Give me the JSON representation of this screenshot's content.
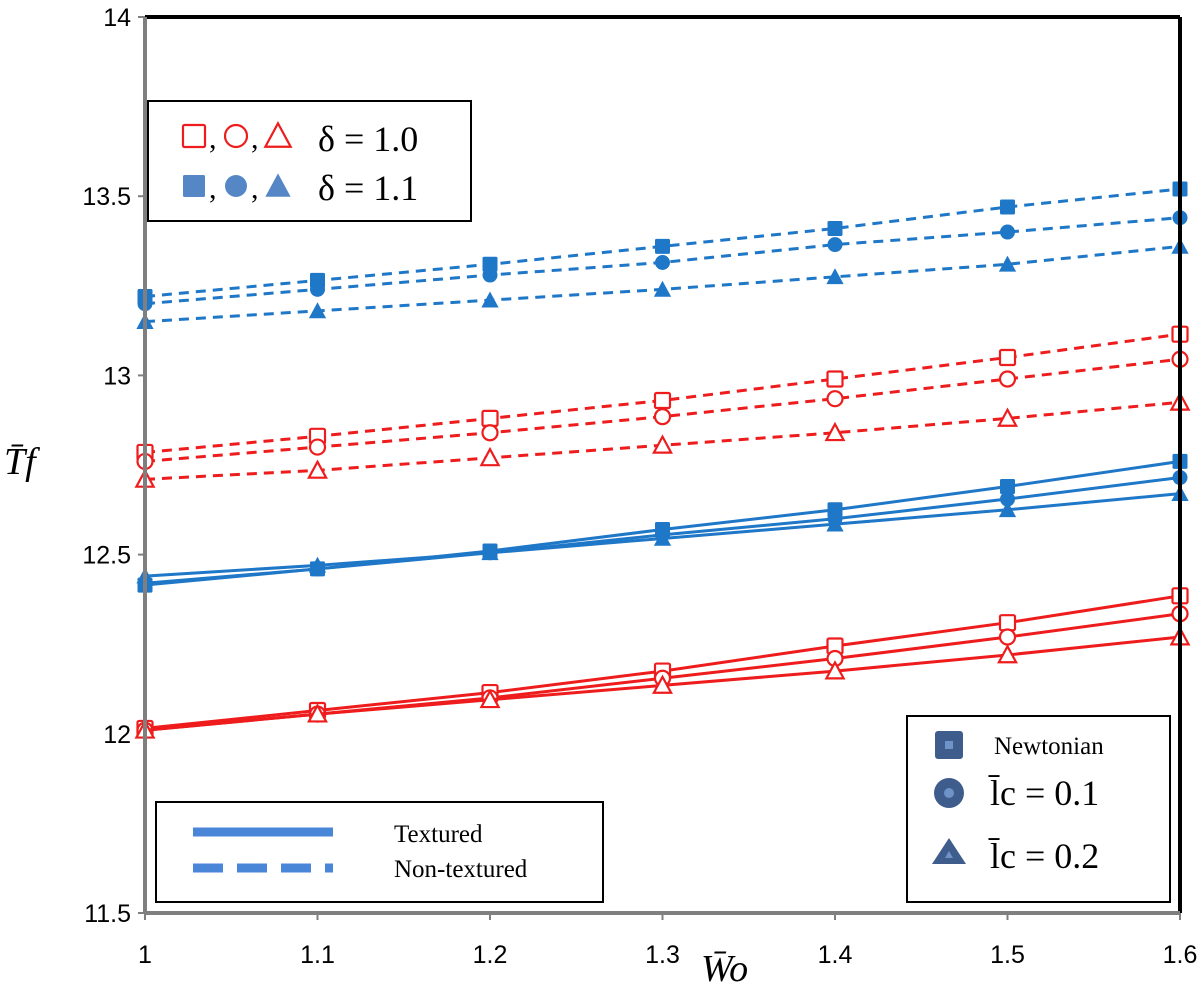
{
  "chart_data": {
    "type": "line",
    "title": "",
    "xlabel": "W̄o",
    "ylabel": "T̄f",
    "xlim": [
      1,
      1.6
    ],
    "ylim": [
      11.5,
      14
    ],
    "x": [
      1,
      1.1,
      1.2,
      1.3,
      1.4,
      1.5,
      1.6
    ],
    "x_tick_labels": [
      "1",
      "1.1",
      "1.2",
      "1.3",
      "1.4",
      "1.5",
      "1.6"
    ],
    "y_tick_labels": [
      "11.5",
      "12",
      "12.5",
      "13",
      "13.5",
      "14"
    ],
    "y_ticks": [
      11.5,
      12,
      12.5,
      13,
      13.5,
      14
    ],
    "grid": false,
    "series": [
      {
        "model": "newtonian",
        "delta": 1.1,
        "textured": false,
        "color": "#1f77c8",
        "values": [
          13.22,
          13.265,
          13.31,
          13.36,
          13.41,
          13.47,
          13.52
        ]
      },
      {
        "model": "lc0.1",
        "delta": 1.1,
        "textured": false,
        "color": "#1f77c8",
        "values": [
          13.2,
          13.24,
          13.28,
          13.315,
          13.365,
          13.4,
          13.44
        ]
      },
      {
        "model": "lc0.2",
        "delta": 1.1,
        "textured": false,
        "color": "#1f77c8",
        "values": [
          13.15,
          13.18,
          13.21,
          13.24,
          13.275,
          13.31,
          13.36
        ]
      },
      {
        "model": "newtonian",
        "delta": 1.0,
        "textured": false,
        "color": "#ee1c1c",
        "values": [
          12.785,
          12.83,
          12.88,
          12.93,
          12.99,
          13.05,
          13.115
        ]
      },
      {
        "model": "lc0.1",
        "delta": 1.0,
        "textured": false,
        "color": "#ee1c1c",
        "values": [
          12.76,
          12.8,
          12.84,
          12.885,
          12.935,
          12.99,
          13.045
        ]
      },
      {
        "model": "lc0.2",
        "delta": 1.0,
        "textured": false,
        "color": "#ee1c1c",
        "values": [
          12.71,
          12.735,
          12.77,
          12.805,
          12.84,
          12.88,
          12.925
        ]
      },
      {
        "model": "newtonian",
        "delta": 1.1,
        "textured": true,
        "color": "#1f77c8",
        "values": [
          12.415,
          12.46,
          12.51,
          12.57,
          12.625,
          12.69,
          12.76
        ]
      },
      {
        "model": "lc0.1",
        "delta": 1.1,
        "textured": true,
        "color": "#1f77c8",
        "values": [
          12.42,
          12.46,
          12.505,
          12.555,
          12.6,
          12.655,
          12.715
        ]
      },
      {
        "model": "lc0.2",
        "delta": 1.1,
        "textured": true,
        "color": "#1f77c8",
        "values": [
          12.44,
          12.47,
          12.505,
          12.545,
          12.585,
          12.625,
          12.67
        ]
      },
      {
        "model": "newtonian",
        "delta": 1.0,
        "textured": true,
        "color": "#ee1c1c",
        "values": [
          12.015,
          12.065,
          12.115,
          12.175,
          12.245,
          12.31,
          12.385
        ]
      },
      {
        "model": "lc0.1",
        "delta": 1.0,
        "textured": true,
        "color": "#ee1c1c",
        "values": [
          12.01,
          12.055,
          12.1,
          12.155,
          12.21,
          12.27,
          12.335
        ]
      },
      {
        "model": "lc0.2",
        "delta": 1.0,
        "textured": true,
        "color": "#ee1c1c",
        "values": [
          12.01,
          12.055,
          12.095,
          12.135,
          12.175,
          12.22,
          12.27
        ]
      }
    ],
    "legends": {
      "delta": {
        "position": "top-left",
        "entries": [
          {
            "markers": "open",
            "color": "#ee1c1c",
            "label": "δ = 1.0"
          },
          {
            "markers": "filled",
            "color": "#5587c6",
            "label": "δ = 1.1"
          }
        ]
      },
      "linestyle": {
        "position": "bottom-left",
        "entries": [
          {
            "style": "solid",
            "label": "Textured"
          },
          {
            "style": "dashed",
            "label": "Non-textured"
          }
        ]
      },
      "model": {
        "position": "bottom-right",
        "entries": [
          {
            "marker": "square",
            "label": "Newtonian"
          },
          {
            "marker": "circle",
            "label": "l̄c = 0.1"
          },
          {
            "marker": "triangle",
            "label": "l̄c = 0.2"
          }
        ]
      }
    }
  }
}
